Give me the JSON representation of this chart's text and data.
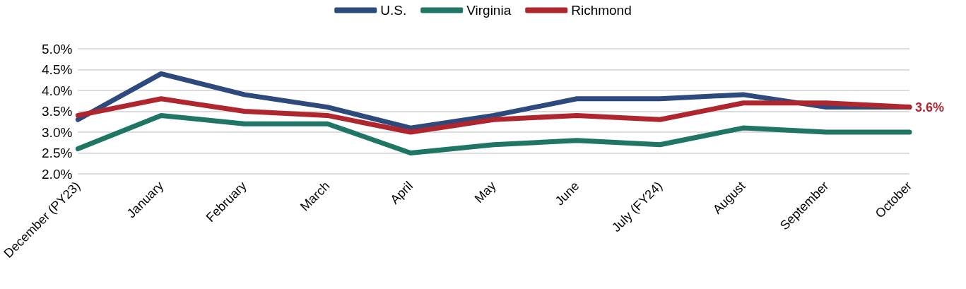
{
  "chart_data": {
    "type": "line",
    "categories": [
      "December (PY23)",
      "January",
      "February",
      "March",
      "April",
      "May",
      "June",
      "July (FY24)",
      "August",
      "September",
      "October"
    ],
    "series": [
      {
        "name": "U.S.",
        "color": "#2e4a7d",
        "values": [
          3.3,
          4.4,
          3.9,
          3.6,
          3.1,
          3.4,
          3.8,
          3.8,
          3.9,
          3.6,
          3.6
        ]
      },
      {
        "name": "Virginia",
        "color": "#1f7664",
        "values": [
          2.6,
          3.4,
          3.2,
          3.2,
          2.5,
          2.7,
          2.8,
          2.7,
          3.1,
          3.0,
          3.0
        ]
      },
      {
        "name": "Richmond",
        "color": "#b0262f",
        "values": [
          3.4,
          3.8,
          3.5,
          3.4,
          3.0,
          3.3,
          3.4,
          3.3,
          3.7,
          3.7,
          3.6
        ],
        "value_labels": [
          null,
          null,
          null,
          null,
          null,
          null,
          null,
          null,
          null,
          null,
          "3.6%"
        ]
      }
    ],
    "ylim": [
      2,
      5
    ],
    "yticks": [
      {
        "value": 2,
        "label": "2.0%"
      },
      {
        "value": 2.5,
        "label": "2.5%"
      },
      {
        "value": 3,
        "label": "3.0%"
      },
      {
        "value": 3.5,
        "label": "3.5%"
      },
      {
        "value": 4,
        "label": "4.0%"
      },
      {
        "value": 4.5,
        "label": "4.5%"
      },
      {
        "value": 5,
        "label": "5.0%"
      }
    ],
    "grid": "y",
    "legend": "top",
    "marker": "none",
    "line_style": "solid"
  }
}
